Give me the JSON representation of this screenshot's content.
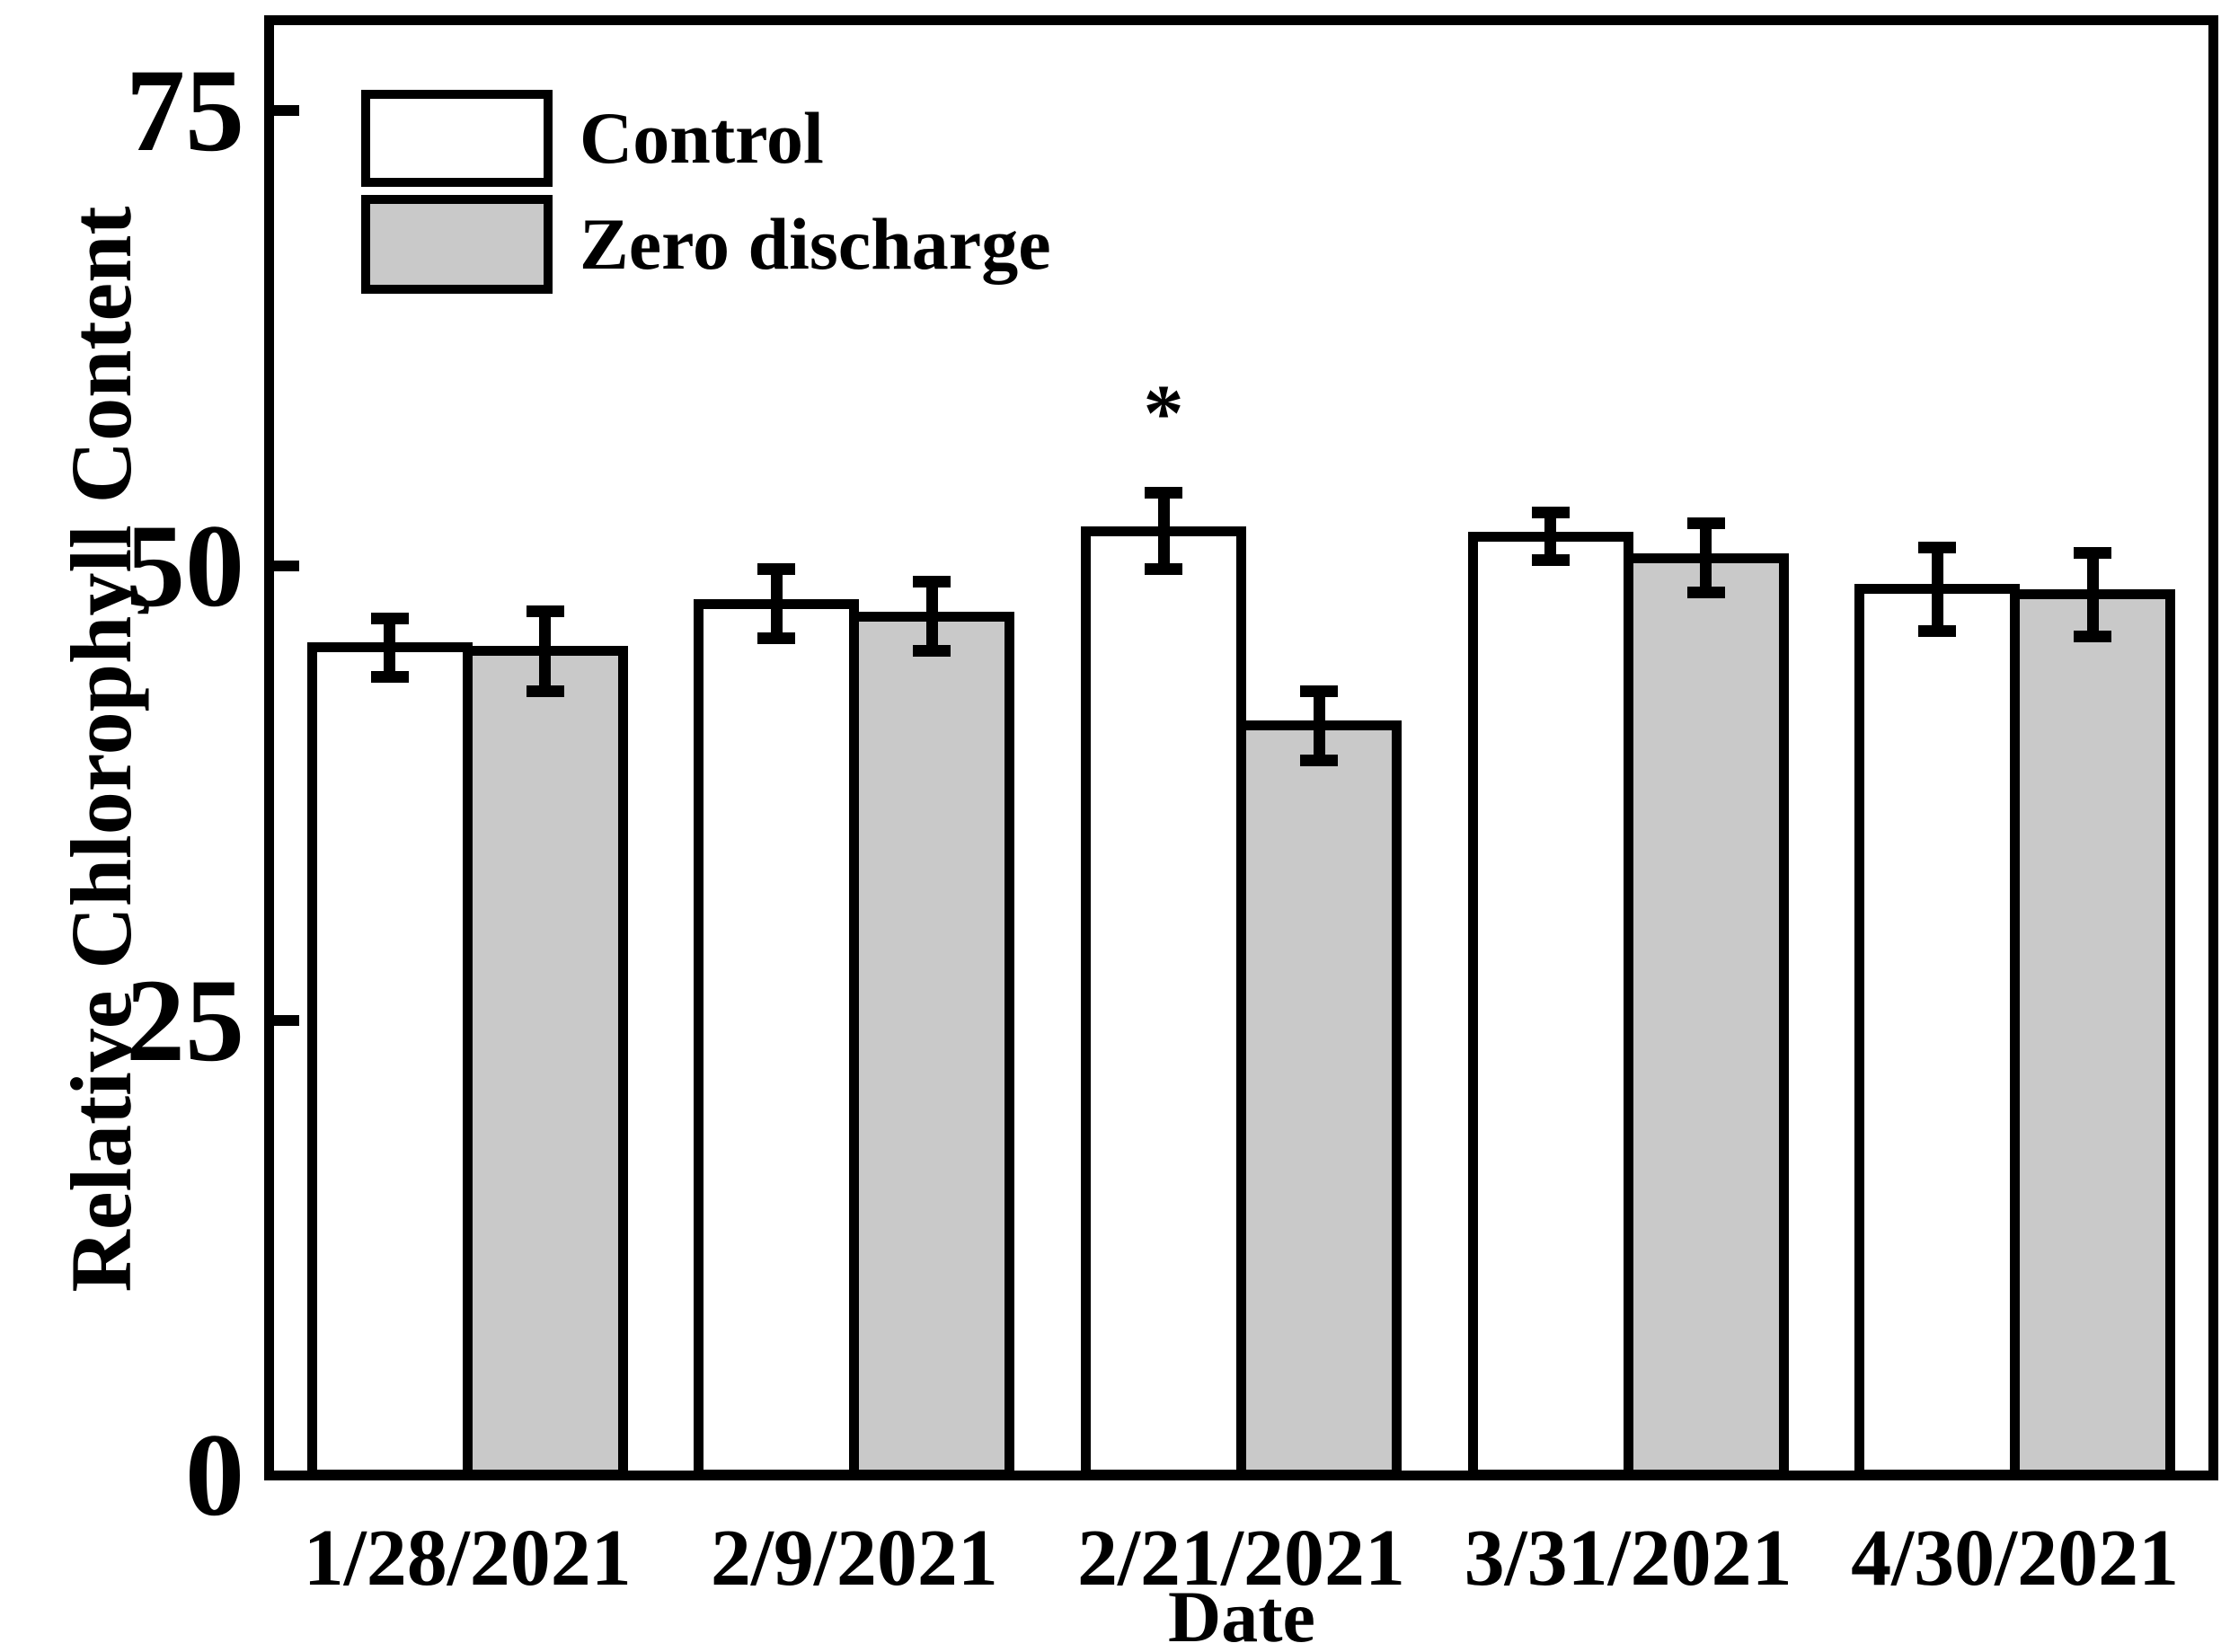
{
  "chart_data": {
    "type": "bar",
    "title": "",
    "xlabel": "Date",
    "ylabel": "Relative Chlorophyll Content",
    "categories": [
      "1/28/2021",
      "2/9/2021",
      "2/21/2021",
      "3/31/2021",
      "4/30/2021"
    ],
    "series": [
      {
        "name": "Control",
        "fill": "#ffffff",
        "values": [
          45.5,
          47.9,
          51.9,
          51.6,
          48.7
        ],
        "errors": [
          1.6,
          1.9,
          2.1,
          1.3,
          2.3
        ]
      },
      {
        "name": "Zero discharge",
        "fill": "#c9c9c9",
        "values": [
          45.3,
          47.2,
          41.2,
          50.4,
          48.4
        ],
        "errors": [
          2.2,
          1.9,
          1.9,
          1.9,
          2.3
        ]
      }
    ],
    "yticks": [
      0,
      25,
      50,
      75
    ],
    "ylim": [
      0,
      80
    ],
    "grid": false,
    "legend_position": "top-left",
    "annotations": [
      {
        "text": "*",
        "meaning": "significant-difference",
        "category": "2/21/2021",
        "series": "Control"
      }
    ],
    "colors": {
      "axis": "#000000",
      "bar_outline": "#000000",
      "control_fill": "#ffffff",
      "zero_discharge_fill": "#c9c9c9"
    }
  },
  "legend": {
    "items": [
      {
        "label": "Control"
      },
      {
        "label": "Zero discharge"
      }
    ]
  }
}
